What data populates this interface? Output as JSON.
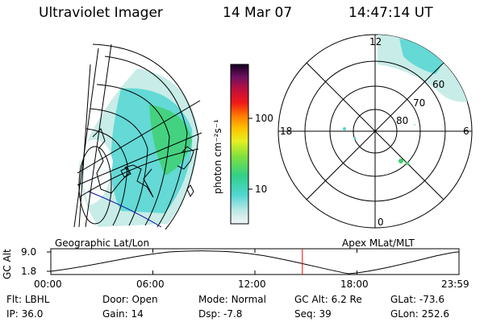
{
  "header": {
    "instrument": "Ultraviolet Imager",
    "date": "14 Mar 07",
    "time": "14:47:14 UT"
  },
  "colorbar": {
    "unit_label": "photon cm⁻²s⁻¹",
    "ticks": [
      "100",
      "10"
    ]
  },
  "polar_plot": {
    "mlt_labels": {
      "top": "12",
      "left": "18",
      "right": "6",
      "bottom": "0"
    },
    "lat_labels": [
      "60",
      "70",
      "80"
    ]
  },
  "map_labels": {
    "left": "Geographic Lat/Lon",
    "right": "Apex MLat/MLT"
  },
  "orbit_plot": {
    "axis_title": "GC Alt",
    "y_ticks": [
      "9.0",
      "1.8"
    ],
    "x_ticks": [
      "00:00",
      "06:00",
      "12:00",
      "18:00",
      "23:59"
    ],
    "current_time_hours": 14.79
  },
  "info": {
    "row1": [
      {
        "key": "Flt:",
        "value": "LBHL"
      },
      {
        "key": "Door:",
        "value": "Open"
      },
      {
        "key": "Mode:",
        "value": "Normal"
      },
      {
        "key": "GC Alt:",
        "value": "6.2 Re"
      },
      {
        "key": "GLat:",
        "value": "-73.6"
      }
    ],
    "row2": [
      {
        "key": "IP:",
        "value": "36.0"
      },
      {
        "key": "Gain:",
        "value": "14"
      },
      {
        "key": "Dsp:",
        "value": "-7.8"
      },
      {
        "key": "Seq:",
        "value": "39"
      },
      {
        "key": "GLon:",
        "value": "252.6"
      }
    ]
  },
  "colors": {
    "aurora_light": "#c8ece8",
    "aurora_cyan": "#52d6d2",
    "aurora_green": "#3ccf6a",
    "marker_red": "#ff0000",
    "grid_blue": "#1010a0"
  }
}
